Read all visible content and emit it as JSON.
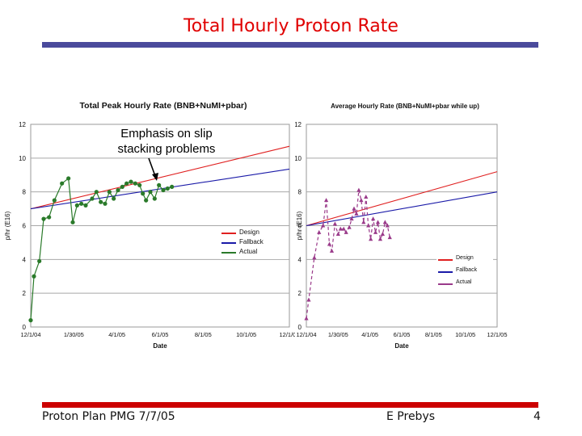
{
  "slide": {
    "title": "Total Hourly Proton Rate",
    "footer_left": "Proton Plan PMG 7/7/05",
    "footer_center": "E Prebys",
    "page_number": "4",
    "annotation_line1": "Emphasis on slip",
    "annotation_line2": "stacking problems"
  },
  "colors": {
    "title": "#e00000",
    "design": "#e02020",
    "fallback": "#1a1aa8",
    "actual_left": "#2a7a2a",
    "actual_right": "#9a3a8a",
    "title_bar": "#4a4a9c",
    "footer_bar": "#cc0000"
  },
  "chart_data": [
    {
      "type": "line",
      "title": "Total Peak Hourly Rate (BNB+NuMI+pbar)",
      "xlabel": "Date",
      "ylabel": "p/hr (E16)",
      "xlim": [
        0,
        12
      ],
      "ylim": [
        0,
        12
      ],
      "x_ticks": [
        0,
        2,
        4,
        6,
        8,
        10,
        12
      ],
      "x_tick_labels": [
        "12/1/04",
        "1/30/05",
        "4/1/05",
        "6/1/05",
        "8/1/05",
        "10/1/05",
        "12/1/05"
      ],
      "y_ticks": [
        0,
        2,
        4,
        6,
        8,
        10,
        12
      ],
      "y_tick_labels": [
        "0",
        "2",
        "4",
        "6",
        "8",
        "10",
        "12"
      ],
      "grid": true,
      "legend_position": "right",
      "series": [
        {
          "name": "Design",
          "x": [
            0,
            12
          ],
          "values": [
            7.0,
            10.7
          ]
        },
        {
          "name": "Fallback",
          "x": [
            0,
            12
          ],
          "values": [
            7.0,
            9.35
          ]
        },
        {
          "name": "Actual",
          "x": [
            0,
            0.15,
            0.4,
            0.6,
            0.85,
            1.1,
            1.45,
            1.75,
            1.95,
            2.15,
            2.35,
            2.55,
            2.85,
            3.05,
            3.25,
            3.45,
            3.65,
            3.85,
            4.05,
            4.25,
            4.45,
            4.65,
            4.85,
            5.05,
            5.2,
            5.35,
            5.55,
            5.75,
            5.95,
            6.15,
            6.35,
            6.55
          ],
          "values": [
            0.4,
            3.0,
            3.9,
            6.4,
            6.5,
            7.5,
            8.5,
            8.8,
            6.2,
            7.2,
            7.3,
            7.2,
            7.6,
            8.0,
            7.4,
            7.3,
            8.0,
            7.6,
            8.1,
            8.3,
            8.5,
            8.6,
            8.5,
            8.4,
            7.9,
            7.5,
            8.0,
            7.6,
            8.4,
            8.1,
            8.2,
            8.3
          ]
        }
      ]
    },
    {
      "type": "line",
      "title": "Average Hourly Rate (BNB+NuMI+pbar while up)",
      "xlabel": "Date",
      "ylabel": "p/hr (E16)",
      "xlim": [
        0,
        12
      ],
      "ylim": [
        0,
        12
      ],
      "x_ticks": [
        0,
        2,
        4,
        6,
        8,
        10,
        12
      ],
      "x_tick_labels": [
        "12/1/04",
        "1/30/05",
        "4/1/05",
        "6/1/05",
        "8/1/05",
        "10/1/05",
        "12/1/05"
      ],
      "y_ticks": [
        0,
        2,
        4,
        6,
        8,
        10,
        12
      ],
      "y_tick_labels": [
        "0",
        "2",
        "4",
        "6",
        "8",
        "10",
        "12"
      ],
      "grid": true,
      "legend_position": "bottom-right",
      "series": [
        {
          "name": "Design",
          "x": [
            0,
            12
          ],
          "values": [
            6.0,
            9.2
          ]
        },
        {
          "name": "Fallback",
          "x": [
            0,
            12
          ],
          "values": [
            6.0,
            8.0
          ]
        },
        {
          "name": "Actual",
          "x": [
            0,
            0.15,
            0.5,
            0.8,
            1.05,
            1.25,
            1.45,
            1.6,
            1.8,
            2.0,
            2.15,
            2.35,
            2.5,
            2.7,
            2.85,
            3.0,
            3.15,
            3.3,
            3.45,
            3.6,
            3.75,
            3.9,
            4.05,
            4.2,
            4.35,
            4.5,
            4.65,
            4.8,
            4.95,
            5.1,
            5.25
          ],
          "values": [
            0.5,
            1.6,
            4.1,
            5.6,
            6.0,
            7.5,
            4.9,
            4.5,
            6.1,
            5.5,
            5.8,
            5.8,
            5.6,
            5.9,
            6.4,
            7.0,
            6.7,
            8.1,
            7.5,
            6.2,
            7.7,
            6.0,
            5.2,
            6.4,
            5.6,
            6.2,
            5.2,
            5.5,
            6.2,
            6.0,
            5.3
          ]
        }
      ]
    }
  ]
}
